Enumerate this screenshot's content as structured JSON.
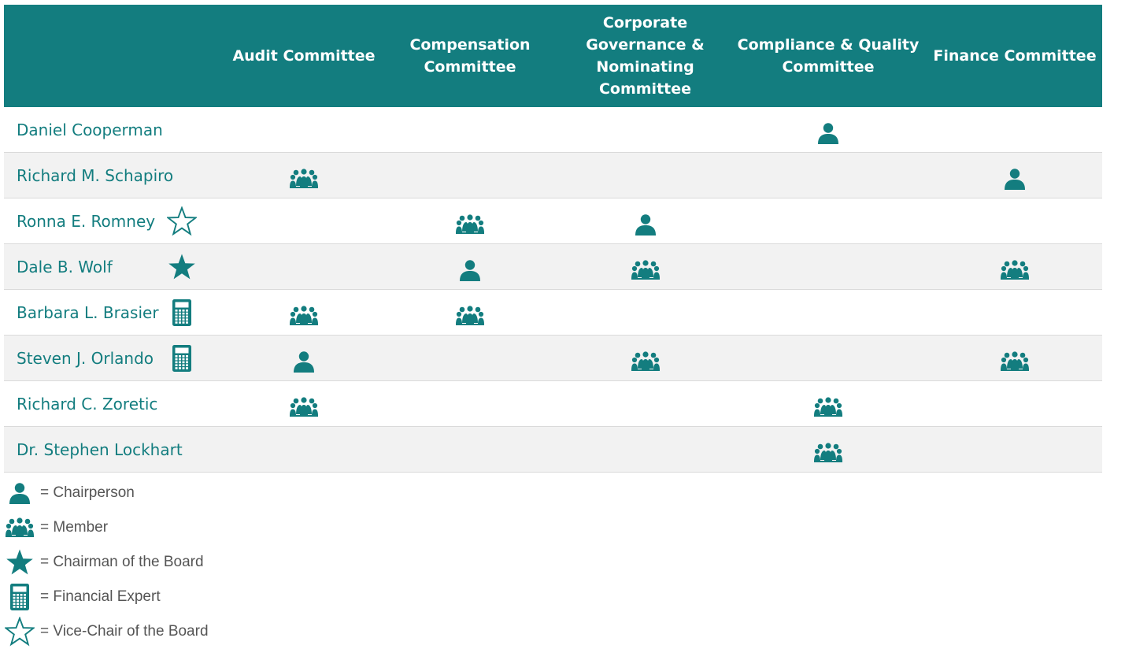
{
  "colors": {
    "accent": "#137d7f",
    "row_alt": "#f2f2f2",
    "legend_text": "#555555"
  },
  "header": {
    "name_col": "",
    "committees": [
      "Audit Committee",
      "Compensation Committee",
      "Corporate Governance & Nominating Committee",
      "Compliance & Quality Committee",
      "Finance Committee"
    ]
  },
  "rows": [
    {
      "name": "Daniel Cooperman",
      "badge": null,
      "roles": [
        null,
        null,
        null,
        "chair",
        null
      ]
    },
    {
      "name": "Richard M. Schapiro",
      "badge": null,
      "roles": [
        "member",
        null,
        null,
        null,
        "chair"
      ]
    },
    {
      "name": "Ronna E. Romney",
      "badge": "vice-chair-star-icon",
      "roles": [
        null,
        "member",
        "chair",
        null,
        null
      ]
    },
    {
      "name": "Dale B. Wolf",
      "badge": "chairman-star-icon",
      "roles": [
        null,
        "chair",
        "member",
        null,
        "member"
      ]
    },
    {
      "name": "Barbara L. Brasier",
      "badge": "calculator-icon",
      "roles": [
        "member",
        "member",
        null,
        null,
        null
      ]
    },
    {
      "name": "Steven J. Orlando",
      "badge": "calculator-icon",
      "roles": [
        "chair",
        null,
        "member",
        null,
        "member"
      ]
    },
    {
      "name": "Richard C. Zoretic",
      "badge": null,
      "roles": [
        "member",
        null,
        null,
        "member",
        null
      ]
    },
    {
      "name": "Dr. Stephen Lockhart",
      "badge": null,
      "roles": [
        null,
        null,
        null,
        "member",
        null
      ]
    }
  ],
  "legend": [
    {
      "icon": "chairperson-icon",
      "label": "= Chairperson"
    },
    {
      "icon": "member-group-icon",
      "label": "= Member"
    },
    {
      "icon": "chairman-star-icon",
      "label": "= Chairman of the Board"
    },
    {
      "icon": "calculator-icon",
      "label": "= Financial Expert"
    },
    {
      "icon": "vice-chair-star-icon",
      "label": "= Vice-Chair of the Board"
    }
  ]
}
